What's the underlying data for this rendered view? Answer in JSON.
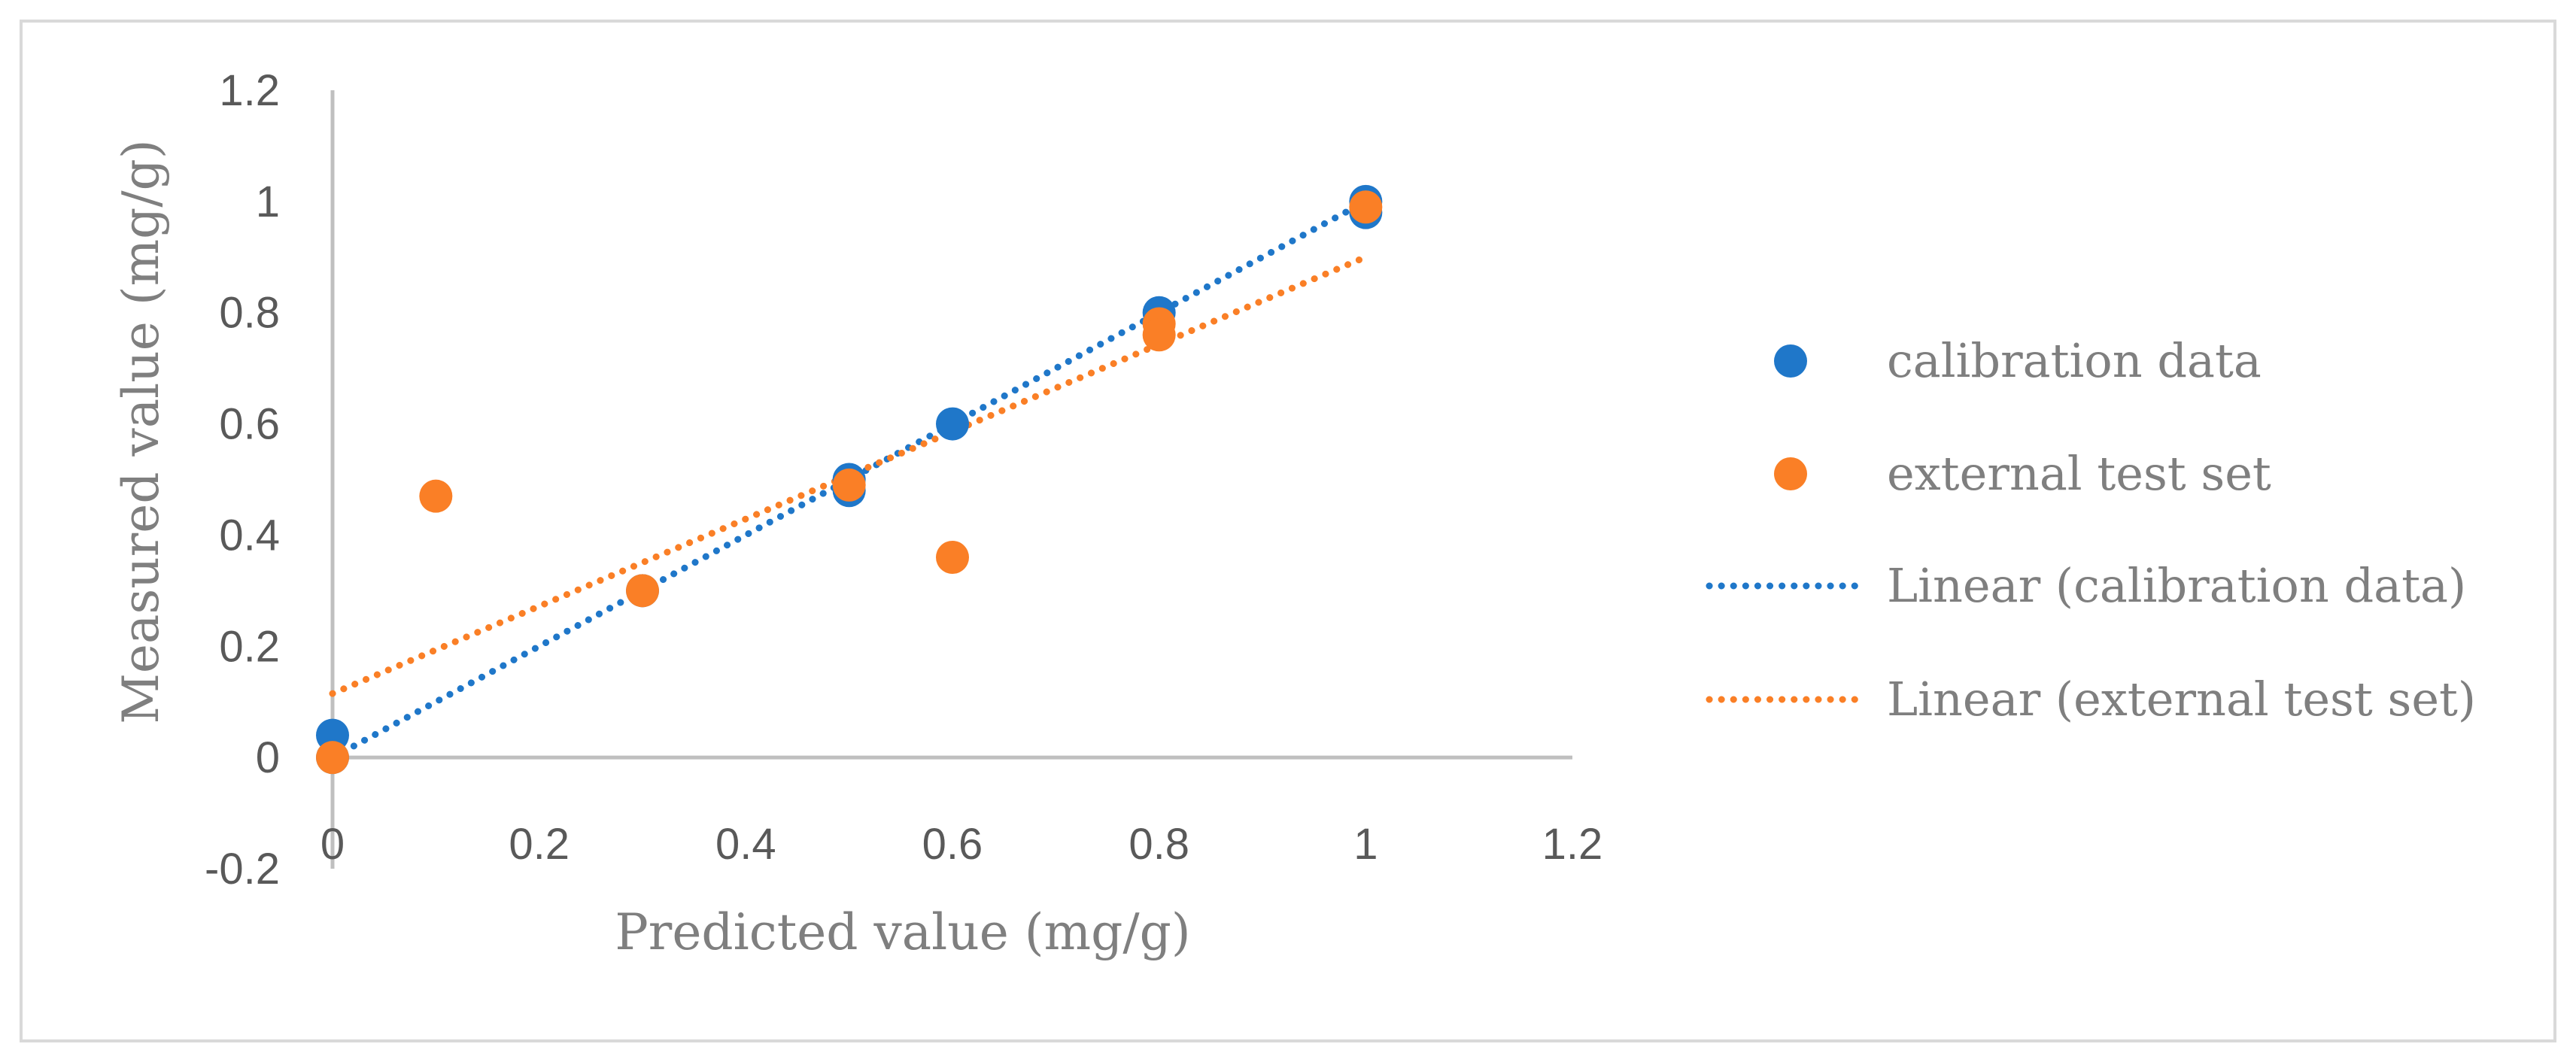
{
  "chart_data": {
    "type": "scatter",
    "title": "",
    "xlabel": "Predicted value (mg/g)",
    "ylabel": "Measured value (mg/g)",
    "xlim": [
      0,
      1.2
    ],
    "ylim": [
      -0.2,
      1.2
    ],
    "xticks": [
      0,
      0.2,
      0.4,
      0.6,
      0.8,
      1,
      1.2
    ],
    "yticks": [
      -0.2,
      0,
      0.2,
      0.4,
      0.6,
      0.8,
      1,
      1.2
    ],
    "xtick_labels": [
      "0",
      "0.2",
      "0.4",
      "0.6",
      "0.8",
      "1",
      "1.2"
    ],
    "ytick_labels": [
      "-0.2",
      "0",
      "0.2",
      "0.4",
      "0.6",
      "0.8",
      "1",
      "1.2"
    ],
    "grid": false,
    "legend_position": "right",
    "series": [
      {
        "name": "calibration data",
        "color": "#1f77c9",
        "x": [
          0,
          0,
          0.3,
          0.5,
          0.5,
          0.6,
          0.8,
          1,
          1
        ],
        "y": [
          0.04,
          0,
          0.3,
          0.5,
          0.48,
          0.6,
          0.8,
          1,
          0.98
        ]
      },
      {
        "name": "external test set",
        "color": "#fa7f26",
        "x": [
          0,
          0.1,
          0.3,
          0.5,
          0.6,
          0.8,
          0.8,
          1
        ],
        "y": [
          0,
          0.47,
          0.3,
          0.49,
          0.36,
          0.78,
          0.76,
          0.99
        ]
      }
    ],
    "trendlines": [
      {
        "name": "Linear (calibration data)",
        "color": "#1f77c9",
        "style": "dotted",
        "x": [
          0,
          1
        ],
        "y": [
          0,
          1
        ]
      },
      {
        "name": "Linear (external test set)",
        "color": "#fa7f26",
        "style": "dotted",
        "x": [
          0,
          1
        ],
        "y": [
          0.115,
          0.9
        ]
      }
    ]
  }
}
